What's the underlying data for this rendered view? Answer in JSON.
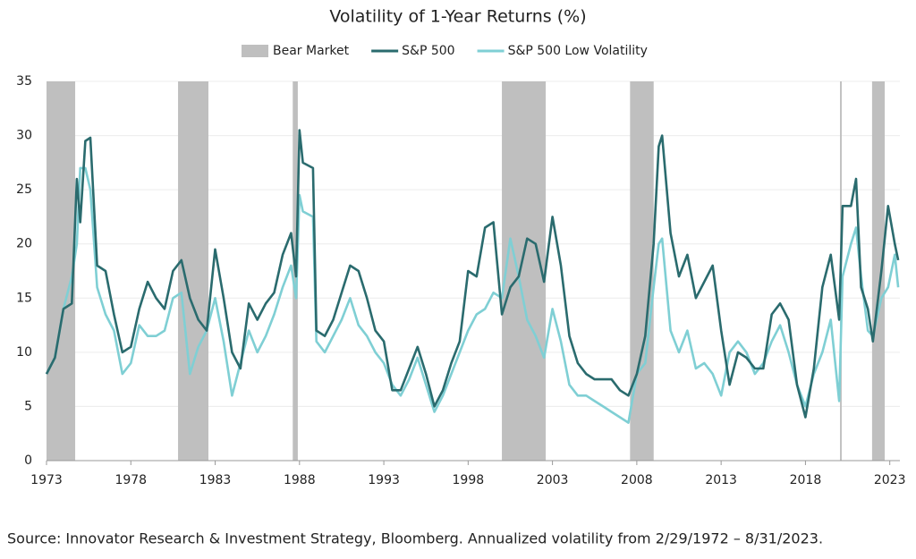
{
  "chart_data": {
    "type": "line",
    "title": "Volatility of 1-Year Returns (%)",
    "source": "Source: Innovator Research & Investment Strategy, Bloomberg. Annualized volatility from 2/29/1972 – 8/31/2023.",
    "xlim": [
      1973,
      2023.6
    ],
    "xticks": [
      1973,
      1978,
      1983,
      1988,
      1993,
      1998,
      2003,
      2008,
      2013,
      2018,
      2023
    ],
    "ylim": [
      0,
      35
    ],
    "yticks": [
      0,
      5,
      10,
      15,
      20,
      25,
      30,
      35
    ],
    "grid": true,
    "shaded": {
      "name": "Bear Market",
      "color": "#bfbfbf",
      "ranges": [
        [
          1973,
          1974.7
        ],
        [
          1980.8,
          1982.6
        ],
        [
          1987.6,
          1987.9
        ],
        [
          2000.0,
          2002.6
        ],
        [
          2007.6,
          2009.0
        ],
        [
          2020.05,
          2020.15
        ],
        [
          2021.95,
          2022.7
        ]
      ]
    },
    "x": [
      1973,
      1973.5,
      1974,
      1974.5,
      1974.8,
      1975,
      1975.3,
      1975.6,
      1976,
      1976.5,
      1977,
      1977.5,
      1978,
      1978.5,
      1979,
      1979.5,
      1980,
      1980.5,
      1981,
      1981.5,
      1982,
      1982.5,
      1983,
      1983.5,
      1984,
      1984.5,
      1985,
      1985.5,
      1986,
      1986.5,
      1987,
      1987.5,
      1987.8,
      1988,
      1988.2,
      1988.8,
      1989,
      1989.5,
      1990,
      1990.5,
      1991,
      1991.5,
      1992,
      1992.5,
      1993,
      1993.5,
      1994,
      1994.5,
      1995,
      1995.5,
      1996,
      1996.5,
      1997,
      1997.5,
      1998,
      1998.5,
      1999,
      1999.5,
      2000,
      2000.5,
      2001,
      2001.5,
      2002,
      2002.5,
      2003,
      2003.5,
      2004,
      2004.5,
      2005,
      2005.5,
      2006,
      2006.5,
      2007,
      2007.5,
      2008,
      2008.5,
      2009,
      2009.3,
      2009.5,
      2010,
      2010.5,
      2011,
      2011.5,
      2012,
      2012.5,
      2013,
      2013.5,
      2014,
      2014.5,
      2015,
      2015.5,
      2016,
      2016.5,
      2017,
      2017.5,
      2018,
      2018.5,
      2019,
      2019.5,
      2020,
      2020.2,
      2020.7,
      2021,
      2021.3,
      2021.7,
      2022,
      2022.5,
      2022.9,
      2023.3,
      2023.5
    ],
    "series": [
      {
        "name": "S&P 500",
        "color": "#2a6b6e",
        "values": [
          8,
          9.5,
          14,
          14.5,
          26,
          22,
          29.5,
          29.8,
          18,
          17.5,
          13.5,
          10,
          10.5,
          14,
          16.5,
          15,
          14,
          17.5,
          18.5,
          15,
          13,
          12,
          19.5,
          15,
          10,
          8.5,
          14.5,
          13,
          14.5,
          15.5,
          19,
          21,
          17,
          30.5,
          27.5,
          27,
          12,
          11.5,
          13,
          15.5,
          18,
          17.5,
          15,
          12,
          11,
          6.5,
          6.5,
          8.5,
          10.5,
          8,
          5,
          6.5,
          9,
          11,
          17.5,
          17,
          21.5,
          22,
          13.5,
          16,
          17,
          20.5,
          20,
          16.5,
          22.5,
          18,
          11.5,
          9,
          8,
          7.5,
          7.5,
          7.5,
          6.5,
          6,
          8,
          11.5,
          20,
          29,
          30,
          21,
          17,
          19,
          15,
          16.5,
          18,
          12,
          7,
          10,
          9.5,
          8.5,
          8.5,
          13.5,
          14.5,
          13,
          7,
          4,
          8.5,
          16,
          19,
          13,
          23.5,
          23.5,
          26,
          16,
          14,
          11,
          17.5,
          23.5,
          20,
          18.5
        ]
      },
      {
        "name": "S&P 500 Low Volatility",
        "color": "#7fcfd4",
        "values": [
          8,
          9.5,
          14,
          17,
          20,
          27,
          27,
          25,
          16,
          13.5,
          12,
          8,
          9,
          12.5,
          11.5,
          11.5,
          12,
          15,
          15.5,
          8,
          10.5,
          12,
          15,
          11,
          6,
          9,
          12,
          10,
          11.5,
          13.5,
          16,
          18,
          15,
          24.5,
          23,
          22.5,
          11,
          10,
          11.5,
          13,
          15,
          12.5,
          11.5,
          10,
          9,
          7,
          6,
          7.5,
          9.5,
          7,
          4.5,
          6,
          8,
          10,
          12,
          13.5,
          14,
          15.5,
          15,
          20.5,
          17,
          13,
          11.5,
          9.5,
          14,
          11,
          7,
          6,
          6,
          5.5,
          5,
          4.5,
          4,
          3.5,
          8,
          9,
          16,
          20,
          20.5,
          12,
          10,
          12,
          8.5,
          9,
          8,
          6,
          10,
          11,
          10,
          8,
          9,
          11,
          12.5,
          10,
          7,
          5,
          8,
          10,
          13,
          5.5,
          17,
          20,
          21.5,
          17,
          12,
          11.5,
          15,
          16,
          19,
          16
        ]
      }
    ]
  }
}
